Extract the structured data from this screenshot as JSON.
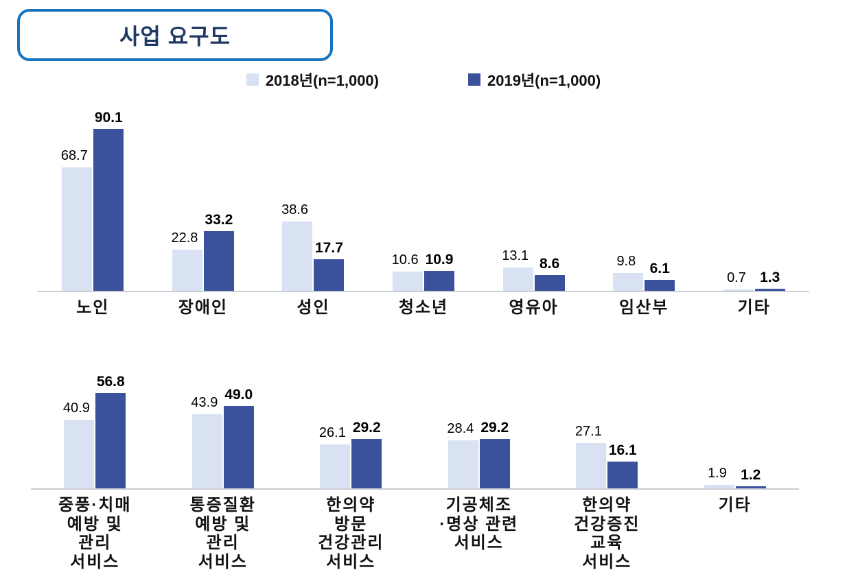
{
  "title": "사업 요구도",
  "legend": {
    "items": [
      {
        "label": "2018년(n=1,000)",
        "color": "#d9e2f3"
      },
      {
        "label": "2019년(n=1,000)",
        "color": "#3a519c"
      }
    ]
  },
  "colors": {
    "series_2018": "#d9e2f3",
    "series_2019": "#3a519c",
    "title_border": "#1673c0",
    "title_text": "#1f3864",
    "axis_line": "#c9ced4"
  },
  "chart_data": [
    {
      "type": "bar",
      "categories": [
        "노인",
        "장애인",
        "성인",
        "청소년",
        "영유아",
        "임산부",
        "기타"
      ],
      "series": [
        {
          "name": "2018년(n=1,000)",
          "values": [
            68.7,
            22.8,
            38.6,
            10.6,
            13.1,
            9.8,
            0.7
          ],
          "labels": [
            "68.7",
            "22.8",
            "38.6",
            "10.6",
            "13.1",
            "9.8",
            "0.7"
          ]
        },
        {
          "name": "2019년(n=1,000)",
          "values": [
            90.1,
            33.2,
            17.7,
            10.9,
            8.6,
            6.1,
            1.3
          ],
          "labels": [
            "90.1",
            "33.2",
            "17.7",
            "10.9",
            "8.6",
            "6.1",
            "1.3"
          ]
        }
      ],
      "title": "사업 요구도",
      "xlabel": "",
      "ylabel": "",
      "ylim": [
        0,
        100
      ],
      "grid": false,
      "legend_position": "top"
    },
    {
      "type": "bar",
      "categories": [
        "중풍·치매\n예방 및\n관리\n서비스",
        "통증질환\n예방 및\n관리\n서비스",
        "한의약\n방문\n건강관리\n서비스",
        "기공체조\n·명상 관련\n서비스",
        "한의약\n건강증진\n교육\n서비스",
        "기타"
      ],
      "series": [
        {
          "name": "2018년(n=1,000)",
          "values": [
            40.9,
            43.9,
            26.1,
            28.4,
            27.1,
            1.9
          ],
          "labels": [
            "40.9",
            "43.9",
            "26.1",
            "28.4",
            "27.1",
            "1.9"
          ]
        },
        {
          "name": "2019년(n=1,000)",
          "values": [
            56.8,
            49.0,
            29.2,
            29.2,
            16.1,
            1.2
          ],
          "labels": [
            "56.8",
            "49.0",
            "29.2",
            "29.2",
            "16.1",
            "1.2"
          ]
        }
      ],
      "title": "사업 요구도",
      "xlabel": "",
      "ylabel": "",
      "ylim": [
        0,
        60
      ],
      "grid": false,
      "legend_position": "top"
    }
  ]
}
